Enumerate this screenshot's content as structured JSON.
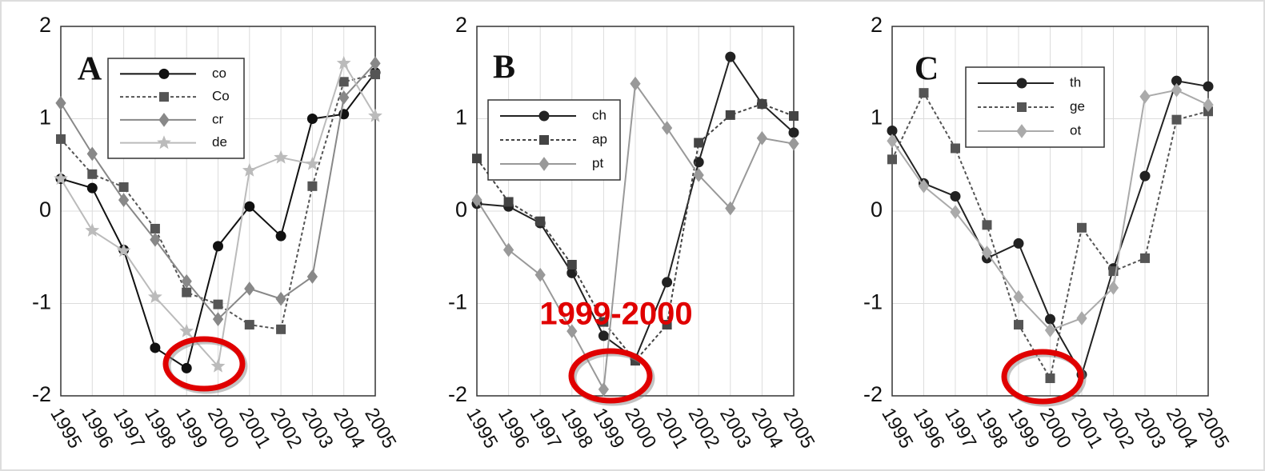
{
  "chart_data": [
    {
      "type": "line",
      "panel_label": "A",
      "categories": [
        "1995",
        "1996",
        "1997",
        "1998",
        "1999",
        "2000",
        "2001",
        "2002",
        "2003",
        "2004",
        "2005"
      ],
      "ylim": [
        -2,
        2
      ],
      "yticks": [
        2,
        1,
        0,
        -1,
        -2
      ],
      "grid": true,
      "legend": "upper left",
      "series": [
        {
          "name": "co",
          "color": "#111111",
          "marker": "circle",
          "dash": false,
          "values": [
            0.35,
            0.25,
            -0.42,
            -1.48,
            -1.7,
            -0.38,
            0.05,
            -0.27,
            1.0,
            1.05,
            1.5
          ]
        },
        {
          "name": "Co",
          "color": "#555555",
          "marker": "square",
          "dash": true,
          "values": [
            0.78,
            0.4,
            0.26,
            -0.19,
            -0.88,
            -1.01,
            -1.23,
            -1.28,
            0.27,
            1.4,
            1.48
          ]
        },
        {
          "name": "cr",
          "color": "#888888",
          "marker": "diamond",
          "dash": false,
          "values": [
            1.17,
            0.62,
            0.12,
            -0.31,
            -0.76,
            -1.17,
            -0.84,
            -0.95,
            -0.71,
            1.23,
            1.6
          ]
        },
        {
          "name": "de",
          "color": "#bbbbbb",
          "marker": "star",
          "dash": false,
          "values": [
            0.35,
            -0.21,
            -0.43,
            -0.93,
            -1.3,
            -1.68,
            0.44,
            0.58,
            0.51,
            1.6,
            1.03
          ]
        }
      ]
    },
    {
      "type": "line",
      "panel_label": "B",
      "annotation": "1999-2000",
      "categories": [
        "1995",
        "1996",
        "1997",
        "1998",
        "1999",
        "2000",
        "2001",
        "2002",
        "2003",
        "2004",
        "2005"
      ],
      "ylim": [
        -2,
        2
      ],
      "yticks": [
        2,
        1,
        0,
        -1,
        -2
      ],
      "grid": true,
      "legend": "upper left",
      "series": [
        {
          "name": "ch",
          "color": "#222222",
          "marker": "circle",
          "dash": false,
          "values": [
            0.08,
            0.05,
            -0.13,
            -0.67,
            -1.35,
            -1.6,
            -0.77,
            0.53,
            1.67,
            1.16,
            0.85
          ]
        },
        {
          "name": "ap",
          "color": "#444444",
          "marker": "square",
          "dash": true,
          "values": [
            0.57,
            0.1,
            -0.11,
            -0.58,
            -1.2,
            -1.62,
            -1.23,
            0.74,
            1.04,
            1.16,
            1.03
          ]
        },
        {
          "name": "pt",
          "color": "#999999",
          "marker": "diamond",
          "dash": false,
          "values": [
            0.12,
            -0.42,
            -0.69,
            -1.3,
            -1.93,
            1.38,
            0.9,
            0.39,
            0.03,
            0.79,
            0.73
          ]
        }
      ]
    },
    {
      "type": "line",
      "panel_label": "C",
      "categories": [
        "1995",
        "1996",
        "1997",
        "1998",
        "1999",
        "2000",
        "2001",
        "2002",
        "2003",
        "2004",
        "2005"
      ],
      "ylim": [
        -2,
        2
      ],
      "yticks": [
        2,
        1,
        0,
        -1,
        -2
      ],
      "grid": true,
      "legend": "upper left",
      "series": [
        {
          "name": "th",
          "color": "#222222",
          "marker": "circle",
          "dash": false,
          "values": [
            0.87,
            0.3,
            0.16,
            -0.51,
            -0.35,
            -1.17,
            -1.77,
            -0.62,
            0.38,
            1.41,
            1.35
          ]
        },
        {
          "name": "ge",
          "color": "#555555",
          "marker": "square",
          "dash": true,
          "values": [
            0.56,
            1.28,
            0.68,
            -0.15,
            -1.23,
            -1.81,
            -0.18,
            -0.65,
            -0.51,
            0.99,
            1.08
          ]
        },
        {
          "name": "ot",
          "color": "#aaaaaa",
          "marker": "diamond",
          "dash": false,
          "values": [
            0.76,
            0.27,
            -0.01,
            -0.45,
            -0.93,
            -1.29,
            -1.16,
            -0.83,
            1.24,
            1.31,
            1.15
          ]
        }
      ]
    }
  ]
}
